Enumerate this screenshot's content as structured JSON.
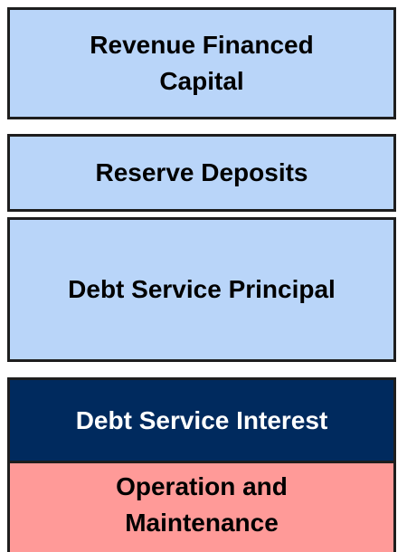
{
  "blocks": [
    {
      "lines": [
        "Revenue Financed",
        "Capital"
      ]
    },
    {
      "lines": [
        "Reserve Deposits"
      ]
    },
    {
      "lines": [
        "Debt Service Principal"
      ]
    },
    {
      "lines": [
        "Debt Service Interest"
      ]
    },
    {
      "lines": [
        "Operation and",
        "Maintenance"
      ]
    }
  ]
}
